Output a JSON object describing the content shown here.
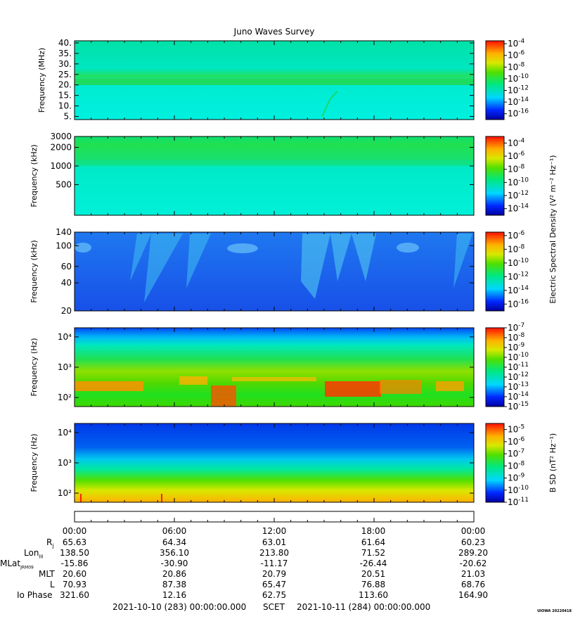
{
  "chart_data": {
    "type": "heatmap",
    "title": "Juno Waves Survey",
    "x_axis": {
      "tick_labels": [
        "00:00",
        "06:00",
        "12:00",
        "18:00",
        "00:00"
      ],
      "range_hours": [
        0,
        24
      ]
    },
    "panels": [
      {
        "id": "p1",
        "ylabel": "Frequency (MHz)",
        "scale": "linear",
        "ylim": [
          3.5,
          41
        ],
        "yticks": [
          5,
          10,
          15,
          20,
          25,
          30,
          35,
          40
        ],
        "ytick_labels": [
          "5.",
          "10.",
          "15.",
          "20.",
          "25.",
          "30.",
          "35.",
          "40."
        ],
        "colorbar": {
          "exponents": [
            -4,
            -6,
            -8,
            -10,
            -12,
            -14,
            -16
          ],
          "cmin": -17,
          "cmax": -3.5
        }
      },
      {
        "id": "p2",
        "ylabel": "Frequency (kHz)",
        "scale": "log",
        "ylim": [
          160,
          3000
        ],
        "yticks": [
          500,
          1000,
          2000,
          3000
        ],
        "ytick_labels": [
          "500",
          "1000",
          "2000",
          "3000"
        ],
        "colorbar": {
          "exponents": [
            -4,
            -6,
            -8,
            -10,
            -12,
            -14
          ],
          "cmin": -15,
          "cmax": -3
        },
        "colorbar_label": "Electric Spectral Density (V² m⁻² Hz⁻¹)"
      },
      {
        "id": "p3",
        "ylabel": "Frequency (kHz)",
        "scale": "log",
        "ylim": [
          20,
          140
        ],
        "yticks": [
          20,
          40,
          60,
          100,
          140
        ],
        "ytick_labels": [
          "20",
          "40",
          "60",
          "100",
          "140"
        ],
        "colorbar": {
          "exponents": [
            -6,
            -8,
            -10,
            -12,
            -14,
            -16
          ],
          "cmin": -17,
          "cmax": -5.5
        }
      },
      {
        "id": "p4",
        "ylabel": "Frequency (Hz)",
        "scale": "log",
        "ylim": [
          50,
          20000
        ],
        "yticks": [
          100,
          1000,
          10000
        ],
        "ytick_labels": [
          "10²",
          "10³",
          "10⁴"
        ],
        "colorbar": {
          "exponents": [
            -7,
            -8,
            -9,
            -10,
            -11,
            -12,
            -13,
            -14,
            -15
          ],
          "cmin": -15,
          "cmax": -7
        }
      },
      {
        "id": "p5",
        "ylabel": "Frequency (Hz)",
        "scale": "log",
        "ylim": [
          50,
          20000
        ],
        "yticks": [
          100,
          1000,
          10000
        ],
        "ytick_labels": [
          "10²",
          "10³",
          "10⁴"
        ],
        "colorbar": {
          "exponents": [
            -5,
            -6,
            -7,
            -8,
            -9,
            -10,
            -11
          ],
          "cmin": -11,
          "cmax": -4.5
        },
        "colorbar_label": "B SD (nT² Hz⁻¹)"
      }
    ],
    "ephemeris": {
      "rows": [
        {
          "label": "Rj",
          "values": [
            "65.63",
            "64.34",
            "63.01",
            "61.64",
            "60.23"
          ]
        },
        {
          "label": "LonIII",
          "values": [
            "138.50",
            "356.10",
            "213.80",
            "71.52",
            "289.20"
          ]
        },
        {
          "label": "MLatJRM09",
          "values": [
            "-15.86",
            "-30.90",
            "-11.17",
            "-26.44",
            "-20.62"
          ]
        },
        {
          "label": "MLT",
          "values": [
            "20.60",
            "20.86",
            "20.79",
            "20.51",
            "21.03"
          ]
        },
        {
          "label": "L",
          "values": [
            "70.93",
            "87.38",
            "65.47",
            "76.88",
            "68.76"
          ]
        },
        {
          "label": "Io Phase",
          "values": [
            "321.60",
            "12.16",
            "62.75",
            "113.60",
            "164.90"
          ]
        }
      ]
    }
  },
  "footer": {
    "start": "2021-10-10 (283) 00:00:00.000",
    "scet": "SCET",
    "end": "2021-10-11 (284) 00:00:00.000"
  },
  "stamp": "UIOWA 20220418",
  "colors": {
    "frame": "#000000",
    "background": "#ffffff"
  }
}
